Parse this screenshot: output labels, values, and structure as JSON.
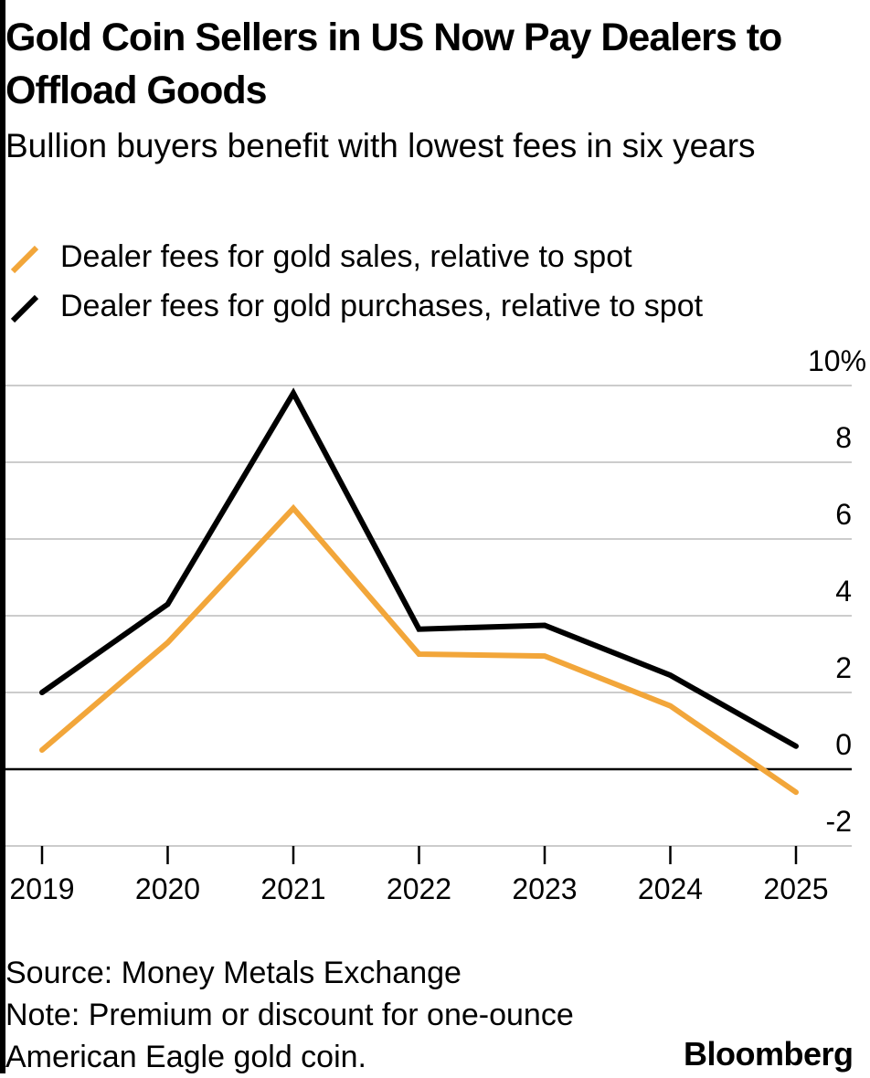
{
  "title": "Gold Coin Sellers in US Now Pay Dealers to Offload Goods",
  "subtitle": "Bullion buyers benefit with lowest fees in six years",
  "source": "Source: Money Metals Exchange",
  "note": "Note: Premium or discount for one-ounce American Eagle gold coin.",
  "brand": "Bloomberg",
  "colors": {
    "sales": "#f2a63a",
    "purchases": "#000000",
    "grid": "#cccccc",
    "zero_line": "#000000"
  },
  "chart_data": {
    "type": "line",
    "x": [
      "2019",
      "2020",
      "2021",
      "2022",
      "2023",
      "2024",
      "2025"
    ],
    "series": [
      {
        "name": "Dealer fees for gold sales, relative to spot",
        "color": "#f2a63a",
        "values": [
          0.5,
          3.3,
          6.8,
          3.0,
          2.95,
          1.65,
          -0.6
        ]
      },
      {
        "name": "Dealer fees for gold purchases, relative to spot",
        "color": "#000000",
        "values": [
          2.0,
          4.3,
          9.8,
          3.65,
          3.75,
          2.45,
          0.6
        ]
      }
    ],
    "ylim": [
      -2,
      10
    ],
    "yticks": [
      10,
      8,
      6,
      4,
      2,
      0,
      -2
    ],
    "ytick_labels": [
      "10%",
      "8",
      "6",
      "4",
      "2",
      "0",
      "-2"
    ],
    "grid": true,
    "y_axis_position": "right",
    "legend_position": "top-left"
  }
}
